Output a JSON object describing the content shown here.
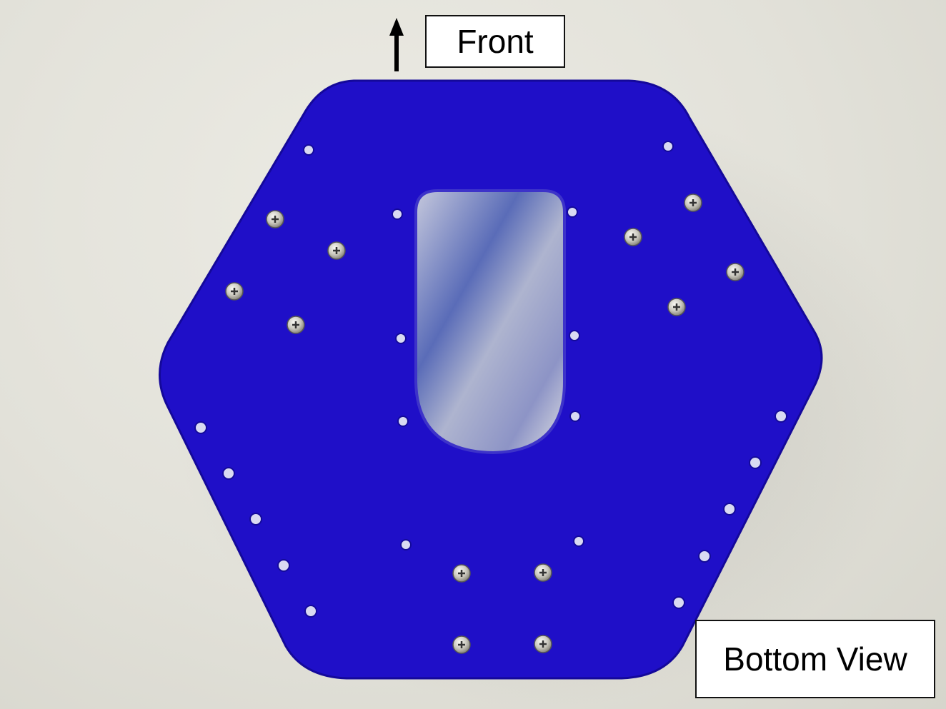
{
  "image": {
    "subject": "hexagonal acrylic plate",
    "plate_color": "#1f0fc8",
    "background_color": "#e6e5de"
  },
  "labels": {
    "front": "Front",
    "view": "Bottom View"
  },
  "icons": {
    "direction_arrow": "up-arrow-icon"
  }
}
